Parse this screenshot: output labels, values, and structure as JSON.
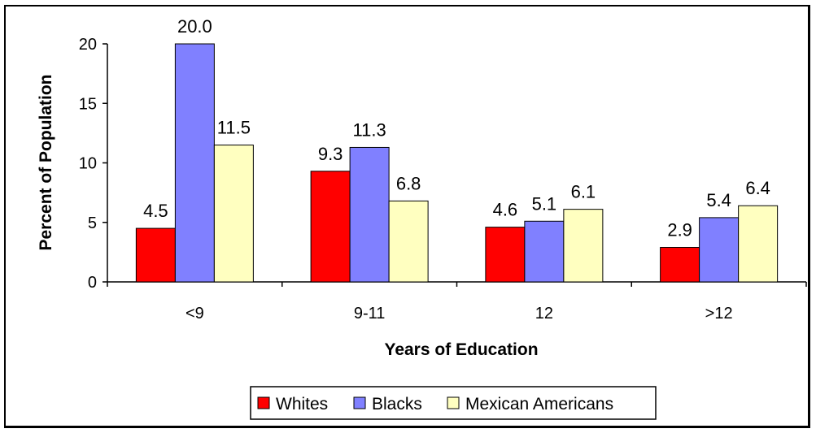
{
  "chart_data": {
    "type": "bar",
    "title": "",
    "xlabel": "Years of Education",
    "ylabel": "Percent of Population",
    "categories": [
      "<9",
      "9-11",
      "12",
      ">12"
    ],
    "ylim": [
      0,
      20
    ],
    "yticks": [
      0,
      5,
      10,
      15,
      20
    ],
    "grid": false,
    "legend_position": "bottom",
    "series": [
      {
        "name": "Whites",
        "color": "#ff0000",
        "values": [
          4.5,
          9.3,
          4.6,
          2.9
        ]
      },
      {
        "name": "Blacks",
        "color": "#8080ff",
        "values": [
          20.0,
          11.3,
          5.1,
          5.4
        ]
      },
      {
        "name": "Mexican Americans",
        "color": "#ffffc0",
        "values": [
          11.5,
          6.8,
          6.1,
          6.4
        ]
      }
    ],
    "data_labels": [
      [
        "4.5",
        "9.3",
        "4.6",
        "2.9"
      ],
      [
        "20.0",
        "11.3",
        "5.1",
        "5.4"
      ],
      [
        "11.5",
        "6.8",
        "6.1",
        "6.4"
      ]
    ]
  }
}
